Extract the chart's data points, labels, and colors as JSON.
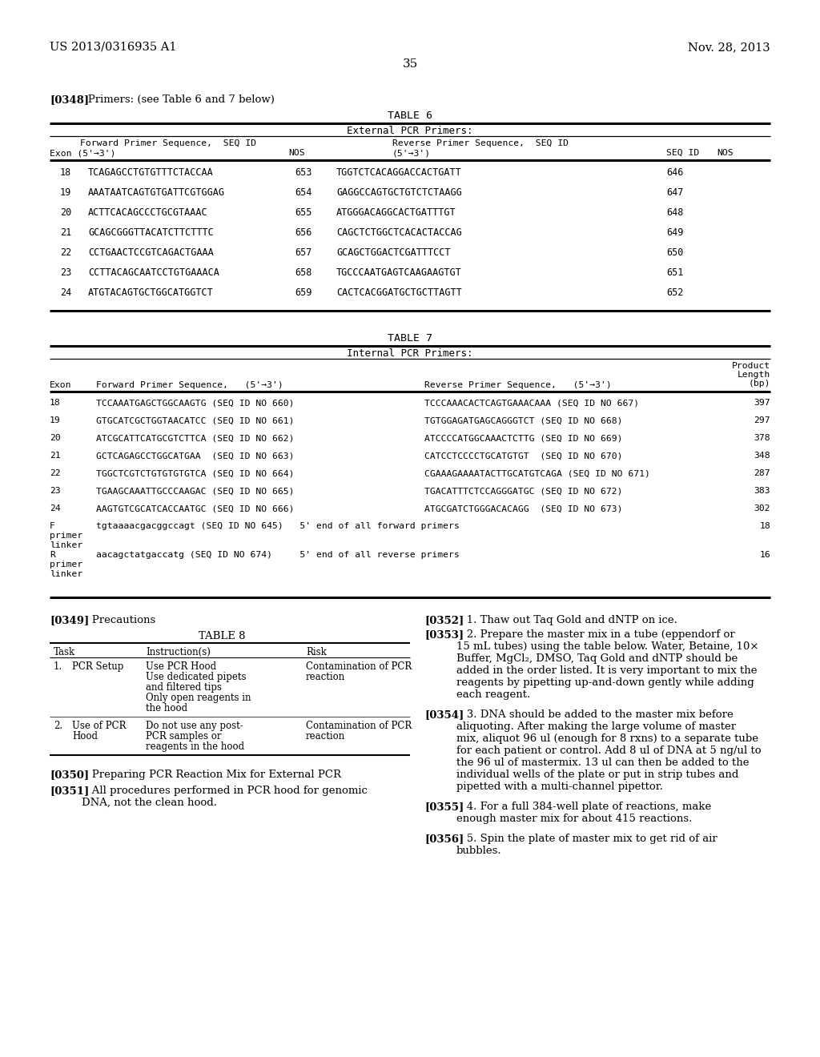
{
  "bg_color": "#ffffff",
  "header_left": "US 2013/0316935 A1",
  "header_right": "Nov. 28, 2013",
  "page_number": "35",
  "para_348_bold": "[0348]",
  "para_348_rest": "   Primers: (see Table 6 and 7 below)",
  "table6_title": "TABLE 6",
  "table6_subtitle": "External PCR Primers:",
  "table6_rows": [
    [
      "18",
      "TCAGAGCCTGTGTTTCTACCAA",
      "653",
      "TGGTCTCACAGGACCACTGATT",
      "646"
    ],
    [
      "19",
      "AAATAATCAGTGTGATTCGTGGAG",
      "654",
      "GAGGCCAGTGCTGTCTCTAAGG",
      "647"
    ],
    [
      "20",
      "ACTTCACAGCCCTGCGTAAAC",
      "655",
      "ATGGGACAGGCACTGATTTGT",
      "648"
    ],
    [
      "21",
      "GCAGCGGGTTACATCTTCTTTC",
      "656",
      "CAGCTCTGGCTCACACTACCAG",
      "649"
    ],
    [
      "22",
      "CCTGAACTCCGTCAGACTGAAA",
      "657",
      "GCAGCTGGACTCGATTTCCT",
      "650"
    ],
    [
      "23",
      "CCTTACAGCAATCCTGTGAAACA",
      "658",
      "TGCCCAATGAGTCAAGAAGTGT",
      "651"
    ],
    [
      "24",
      "ATGTACAGTGCTGGCATGGTCT",
      "659",
      "CACTCACGGATGCTGCTTAGTT",
      "652"
    ]
  ],
  "table7_title": "TABLE 7",
  "table7_subtitle": "Internal PCR Primers:",
  "table7_rows": [
    [
      "18",
      "TCCAAATGAGCTGGCAAGTG (SEQ ID NO 660)",
      "TCCCAAACACTCAGTGAAACAAA (SEQ ID NO 667)",
      "397"
    ],
    [
      "19",
      "GTGCATCGCTGGTAACATCC (SEQ ID NO 661)",
      "TGTGGAGATGAGCAGGGTCT (SEQ ID NO 668)",
      "297"
    ],
    [
      "20",
      "ATCGCATTCATGCGTCTTCA (SEQ ID NO 662)",
      "ATCCCCATGGCAAACTCTTG (SEQ ID NO 669)",
      "378"
    ],
    [
      "21",
      "GCTCAGAGCCTGGCATGAA  (SEQ ID NO 663)",
      "CATCCTCCCCTGCATGTGT  (SEQ ID NO 670)",
      "348"
    ],
    [
      "22",
      "TGGCTCGTCTGTGTGTGTCA (SEQ ID NO 664)",
      "CGAAAGAAAATACTTGCATGTCAGA (SEQ ID NO 671)",
      "287"
    ],
    [
      "23",
      "TGAAGCAAATTGCCCAAGAC (SEQ ID NO 665)",
      "TGACATTTCTCCAGGGATGC (SEQ ID NO 672)",
      "383"
    ],
    [
      "24",
      "AAGTGTCGCATCACCAATGC (SEQ ID NO 666)",
      "ATGCGATCTGGGACACAGG  (SEQ ID NO 673)",
      "302"
    ],
    [
      "F\nprimer\nlinker",
      "tgtaaaacgacggccagt (SEQ ID NO 645)   5' end of all forward primers",
      "",
      "18"
    ],
    [
      "R\nprimer\nlinker",
      "aacagctatgaccatg (SEQ ID NO 674)     5' end of all reverse primers",
      "",
      "16"
    ]
  ],
  "para_349_bold": "[0349]",
  "para_349_rest": "   Precautions",
  "table8_title": "TABLE 8",
  "table8_col_headers": [
    "Task",
    "Instruction(s)",
    "Risk"
  ],
  "table8_row1_task": [
    "1.",
    "PCR Setup"
  ],
  "table8_row1_inst": [
    "Use PCR Hood",
    "Use dedicated pipets",
    "and filtered tips",
    "Only open reagents in",
    "the hood"
  ],
  "table8_row1_risk": [
    "Contamination of PCR",
    "reaction"
  ],
  "table8_row2_task": [
    "2.",
    "Use of PCR",
    "Hood"
  ],
  "table8_row2_inst": [
    "Do not use any post-",
    "PCR samples or",
    "reagents in the hood"
  ],
  "table8_row2_risk": [
    "Contamination of PCR",
    "reaction"
  ],
  "para_350_bold": "[0350]",
  "para_350_rest": "   Preparing PCR Reaction Mix for External PCR",
  "para_351_bold": "[0351]",
  "para_351_rest": "   All procedures performed in PCR hood for genomic\nDNA, not the clean hood.",
  "para_352_bold": "[0352]",
  "para_352_rest": "   1. Thaw out Taq Gold and dNTP on ice.",
  "para_353_bold": "[0353]",
  "para_353_rest": "   2. Prepare the master mix in a tube (eppendorf or\n15 mL tubes) using the table below. Water, Betaine, 10×\nBuffer, MgCl₂, DMSO, Taq Gold and dNTP should be\nadded in the order listed. It is very important to mix the\nreagents by pipetting up-and-down gently while adding\neach reagent.",
  "para_354_bold": "[0354]",
  "para_354_rest": "   3. DNA should be added to the master mix before\naliquoting. After making the large volume of master\nmix, aliquot 96 ul (enough for 8 rxns) to a separate tube\nfor each patient or control. Add 8 ul of DNA at 5 ng/ul to\nthe 96 ul of mastermix. 13 ul can then be added to the\nindividual wells of the plate or put in strip tubes and\npipetted with a multi-channel pipettor.",
  "para_355_bold": "[0355]",
  "para_355_rest": "   4. For a full 384-well plate of reactions, make\nenough master mix for about 415 reactions.",
  "para_356_bold": "[0356]",
  "para_356_rest": "   5. Spin the plate of master mix to get rid of air\nbubbles."
}
